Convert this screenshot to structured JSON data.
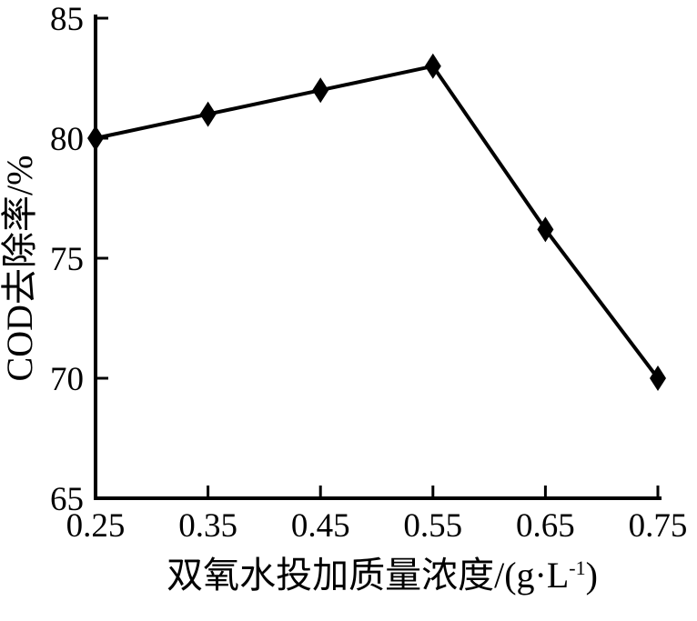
{
  "figure": {
    "background": "#ffffff",
    "ink_color": "#000000"
  },
  "chart_data": {
    "type": "line",
    "title": "",
    "series": [
      {
        "name": "COD去除率",
        "x": [
          0.25,
          0.35,
          0.45,
          0.55,
          0.65,
          0.75
        ],
        "y": [
          80,
          81,
          82,
          83,
          76.2,
          70
        ],
        "color": "#000000",
        "marker": "diamond",
        "line_width": 4
      }
    ],
    "xlabel": "双氧水投加质量浓度/(g·L⁻¹)",
    "xlabel_parts": {
      "prefix": "双氧水投加质量浓度/(g·L",
      "sup": "-1",
      "suffix": ")"
    },
    "ylabel": "COD去除率/%",
    "xlim": [
      0.25,
      0.75
    ],
    "ylim": [
      65,
      85
    ],
    "x_ticks": [
      0.25,
      0.35,
      0.45,
      0.55,
      0.65,
      0.75
    ],
    "x_tick_labels": [
      "0.25",
      "0.35",
      "0.45",
      "0.55",
      "0.65",
      "0.75"
    ],
    "y_ticks": [
      65,
      70,
      75,
      80,
      85
    ],
    "y_tick_labels": [
      "65",
      "70",
      "75",
      "80",
      "85"
    ],
    "grid": false,
    "legend": "none",
    "spines": [
      "left",
      "bottom"
    ],
    "tick_direction": "in"
  }
}
